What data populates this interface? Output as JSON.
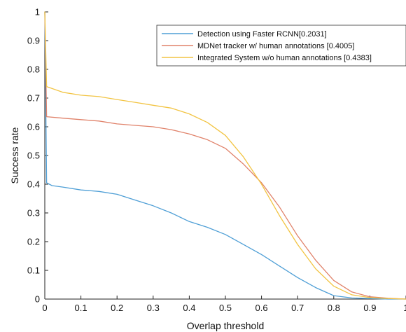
{
  "chart_data": {
    "type": "line",
    "title": "",
    "xlabel": "Overlap threshold",
    "ylabel": "Success rate",
    "xlim": [
      0,
      1
    ],
    "ylim": [
      0,
      1
    ],
    "xticks": [
      0,
      0.1,
      0.2,
      0.3,
      0.4,
      0.5,
      0.6,
      0.7,
      0.8,
      0.9,
      1
    ],
    "xtick_labels": [
      "0",
      "0.1",
      "0.2",
      "0.3",
      "0.4",
      "0.5",
      "0.6",
      "0.7",
      "0.8",
      "0.9",
      "1"
    ],
    "yticks": [
      0,
      0.1,
      0.2,
      0.3,
      0.4,
      0.5,
      0.6,
      0.7,
      0.8,
      0.9,
      1
    ],
    "ytick_labels": [
      "0",
      "0.1",
      "0.2",
      "0.3",
      "0.4",
      "0.5",
      "0.6",
      "0.7",
      "0.8",
      "0.9",
      "1"
    ],
    "grid": false,
    "legend_position": "top-right",
    "series": [
      {
        "name": "Detection using Faster RCNN[0.2031]",
        "color": "#4f9fd6",
        "x": [
          0,
          0.005,
          0.02,
          0.05,
          0.1,
          0.15,
          0.2,
          0.25,
          0.3,
          0.35,
          0.4,
          0.45,
          0.5,
          0.55,
          0.6,
          0.65,
          0.7,
          0.75,
          0.8,
          0.85,
          0.9,
          0.95,
          1.0
        ],
        "y": [
          1.0,
          0.405,
          0.395,
          0.39,
          0.38,
          0.375,
          0.365,
          0.345,
          0.325,
          0.3,
          0.27,
          0.25,
          0.225,
          0.19,
          0.155,
          0.115,
          0.075,
          0.04,
          0.012,
          0.004,
          0.002,
          0.0,
          0.0
        ]
      },
      {
        "name": "MDNet tracker w/ human annotations [0.4005]",
        "color": "#e0826a",
        "x": [
          0,
          0.005,
          0.05,
          0.1,
          0.15,
          0.2,
          0.25,
          0.3,
          0.35,
          0.4,
          0.45,
          0.5,
          0.55,
          0.6,
          0.65,
          0.7,
          0.75,
          0.8,
          0.85,
          0.9,
          0.95,
          1.0
        ],
        "y": [
          1.0,
          0.635,
          0.63,
          0.625,
          0.62,
          0.61,
          0.605,
          0.6,
          0.59,
          0.575,
          0.555,
          0.525,
          0.47,
          0.405,
          0.32,
          0.22,
          0.135,
          0.065,
          0.025,
          0.008,
          0.003,
          0.0
        ]
      },
      {
        "name": "Integrated System w/o human annotations [0.4383]",
        "color": "#f2c443",
        "x": [
          0,
          0.005,
          0.05,
          0.1,
          0.15,
          0.2,
          0.25,
          0.3,
          0.35,
          0.4,
          0.45,
          0.5,
          0.55,
          0.6,
          0.65,
          0.7,
          0.75,
          0.8,
          0.85,
          0.9,
          0.95,
          1.0
        ],
        "y": [
          1.0,
          0.74,
          0.72,
          0.71,
          0.705,
          0.695,
          0.685,
          0.675,
          0.665,
          0.645,
          0.615,
          0.57,
          0.495,
          0.4,
          0.29,
          0.19,
          0.105,
          0.045,
          0.015,
          0.005,
          0.002,
          0.0
        ]
      }
    ]
  }
}
